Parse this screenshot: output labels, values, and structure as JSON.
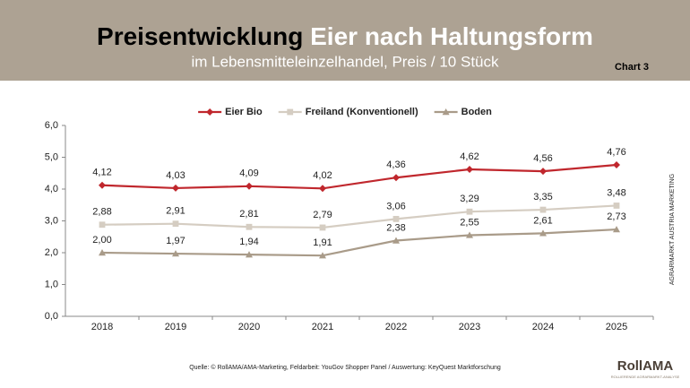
{
  "chart_data": {
    "type": "line",
    "title": [
      "Preisentwicklung",
      "Eier nach Haltungsform"
    ],
    "subtitle": "im Lebensmitteleinzelhandel, Preis / 10 Stück",
    "chart_label": "Chart 3",
    "side_note": "AGRARMARKT AUSTRIA MARKETING",
    "source": "Quelle: © RollAMA/AMA-Marketing, Feldarbeit: YouGov Shopper Panel / Auswertung: KeyQuest Marktforschung",
    "logo": {
      "name": "RollAMA",
      "tagline": "ROLLIERENDE AGRARMARKT-ANALYSE"
    },
    "categories": [
      "2018",
      "2019",
      "2020",
      "2021",
      "2022",
      "2023",
      "2024",
      "2025"
    ],
    "series": [
      {
        "name": "Eier Bio",
        "color": "#c0272d",
        "marker": "diamond",
        "values": [
          4.12,
          4.03,
          4.09,
          4.02,
          4.36,
          4.62,
          4.56,
          4.76
        ],
        "value_labels": [
          "4,12",
          "4,03",
          "4,09",
          "4,02",
          "4,36",
          "4,62",
          "4,56",
          "4,76"
        ]
      },
      {
        "name": "Freiland (Konventionell)",
        "color": "#d5cdc2",
        "marker": "square",
        "values": [
          2.88,
          2.91,
          2.81,
          2.79,
          3.06,
          3.29,
          3.35,
          3.48
        ],
        "value_labels": [
          "2,88",
          "2,91",
          "2,81",
          "2,79",
          "3,06",
          "3,29",
          "3,35",
          "3,48"
        ]
      },
      {
        "name": "Boden",
        "color": "#a99b89",
        "marker": "triangle",
        "values": [
          2.0,
          1.97,
          1.94,
          1.91,
          2.38,
          2.55,
          2.61,
          2.73
        ],
        "value_labels": [
          "2,00",
          "1,97",
          "1,94",
          "1,91",
          "2,38",
          "2,55",
          "2,61",
          "2,73"
        ]
      }
    ],
    "ylim": [
      0,
      6
    ],
    "yticks": [
      {
        "value": 0,
        "label": "0,0"
      },
      {
        "value": 1,
        "label": "1,0"
      },
      {
        "value": 2,
        "label": "2,0"
      },
      {
        "value": 3,
        "label": "3,0"
      },
      {
        "value": 4,
        "label": "4,0"
      },
      {
        "value": 5,
        "label": "5,0"
      },
      {
        "value": 6,
        "label": "6,0"
      }
    ],
    "legend": "top"
  }
}
